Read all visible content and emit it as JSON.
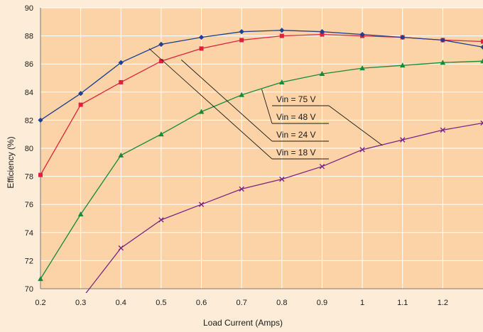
{
  "chart_data": {
    "type": "line",
    "xlabel": "Load Current (Amps)",
    "ylabel": "Efficiency (%)",
    "xlim": [
      0.2,
      1.3
    ],
    "ylim": [
      70,
      90
    ],
    "x_ticks": [
      "0.2",
      "0.3",
      "0.4",
      "0.5",
      "0.6",
      "0.7",
      "0.8",
      "0.9",
      "1",
      "1.1",
      "1.2"
    ],
    "y_ticks": [
      "70",
      "72",
      "74",
      "76",
      "78",
      "80",
      "82",
      "84",
      "86",
      "88",
      "90"
    ],
    "grid": true,
    "series": [
      {
        "name": "Vin = 18 V",
        "color": "#1f3f8f",
        "marker": "diamond",
        "x": [
          0.2,
          0.3,
          0.4,
          0.5,
          0.6,
          0.7,
          0.8,
          0.9,
          1.0,
          1.1,
          1.2,
          1.3
        ],
        "y": [
          82.0,
          83.9,
          86.1,
          87.4,
          87.9,
          88.3,
          88.4,
          88.3,
          88.1,
          87.9,
          87.7,
          87.2
        ]
      },
      {
        "name": "Vin = 24 V",
        "color": "#e0203c",
        "marker": "square",
        "x": [
          0.2,
          0.3,
          0.4,
          0.5,
          0.6,
          0.7,
          0.8,
          0.9,
          1.0,
          1.1,
          1.2,
          1.3
        ],
        "y": [
          78.1,
          83.1,
          84.7,
          86.2,
          87.1,
          87.7,
          88.0,
          88.1,
          88.0,
          87.9,
          87.7,
          87.6
        ]
      },
      {
        "name": "Vin = 48 V",
        "color": "#168a3a",
        "marker": "triangle",
        "x": [
          0.2,
          0.3,
          0.4,
          0.5,
          0.6,
          0.7,
          0.8,
          0.9,
          1.0,
          1.1,
          1.2,
          1.3
        ],
        "y": [
          70.7,
          75.3,
          79.5,
          81.0,
          82.6,
          83.8,
          84.7,
          85.3,
          85.7,
          85.9,
          86.1,
          86.2
        ]
      },
      {
        "name": "Vin = 75 V",
        "color": "#7b2585",
        "marker": "x",
        "x": [
          0.3,
          0.4,
          0.5,
          0.6,
          0.7,
          0.8,
          0.9,
          1.0,
          1.1,
          1.2,
          1.3
        ],
        "y": [
          69.2,
          72.9,
          74.9,
          76.0,
          77.1,
          77.8,
          78.7,
          79.9,
          80.6,
          81.3,
          81.8
        ]
      }
    ],
    "annotations": [
      {
        "text": "Vin = 75 V",
        "series": "Vin = 75 V",
        "points_to": [
          1.05,
          80.2
        ]
      },
      {
        "text": "Vin = 48 V",
        "series": "Vin = 48 V",
        "points_to": [
          0.75,
          84.2
        ]
      },
      {
        "text": "Vin = 24 V",
        "series": "Vin = 24 V",
        "points_to": [
          0.55,
          86.3
        ]
      },
      {
        "text": "Vin = 18 V",
        "series": "Vin = 18 V",
        "points_to": [
          0.47,
          87.1
        ]
      }
    ]
  }
}
